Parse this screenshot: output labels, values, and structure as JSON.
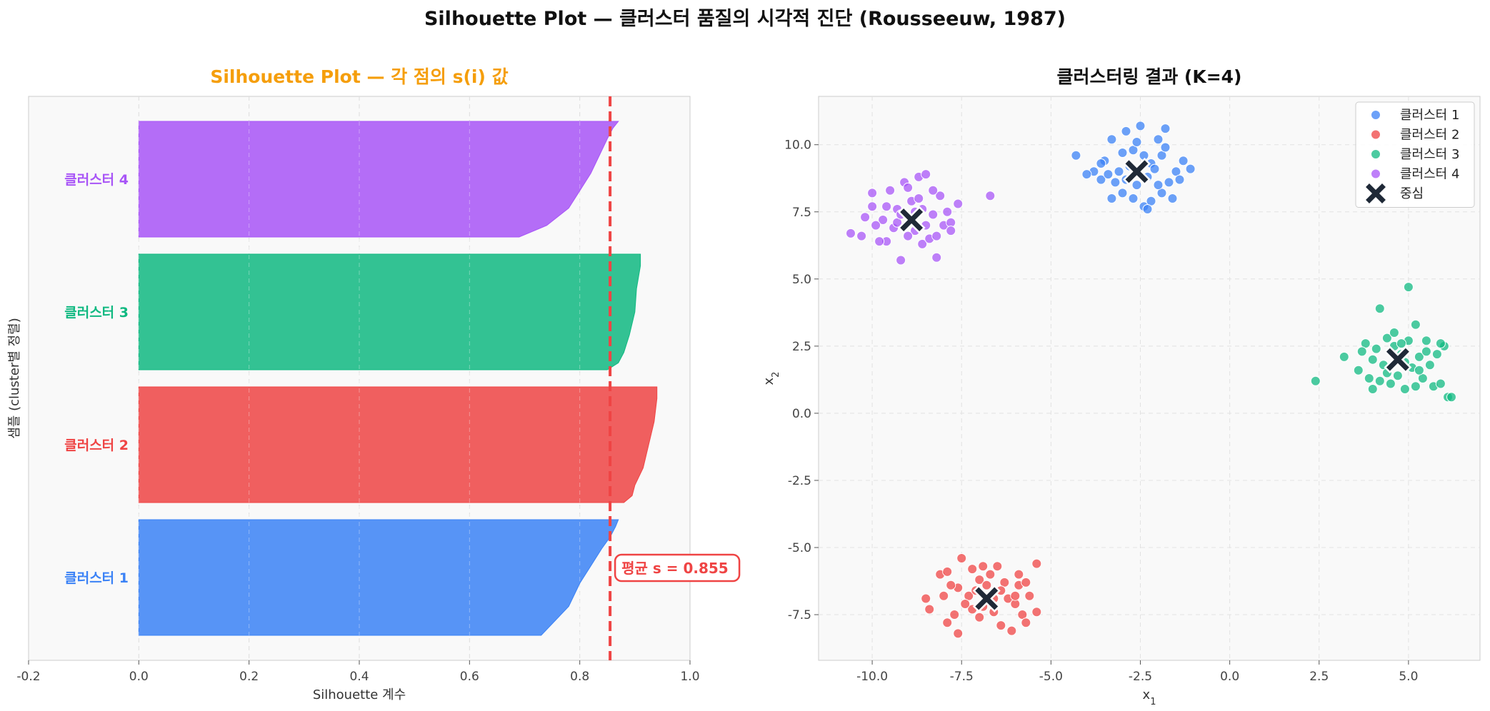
{
  "title": "Silhouette Plot — 클러스터 품질의 시각적 진단 (Rousseeuw, 1987)",
  "chart_data": [
    {
      "type": "area",
      "title": "Silhouette Plot — 각 점의 s(i) 값",
      "title_color": "#f59e0b",
      "xlabel": "Silhouette 계수",
      "ylabel": "샘플 (cluster별 정렬)",
      "xlim": [
        -0.2,
        1.0
      ],
      "xticks": [
        "-0.2",
        "0.0",
        "0.2",
        "0.4",
        "0.6",
        "0.8",
        "1.0"
      ],
      "grid": true,
      "mean_silhouette": 0.855,
      "mean_label": "평균 s = 0.855",
      "mean_color": "#ef4444",
      "clusters": [
        {
          "name": "클러스터 1",
          "color": "#3b82f6",
          "profile": [
            [
              0.0,
              0.73
            ],
            [
              0.25,
              0.78
            ],
            [
              0.45,
              0.8
            ],
            [
              0.6,
              0.82
            ],
            [
              0.75,
              0.84
            ],
            [
              0.85,
              0.855
            ],
            [
              0.94,
              0.865
            ],
            [
              1.0,
              0.87
            ]
          ]
        },
        {
          "name": "클러스터 2",
          "color": "#ef4444",
          "profile": [
            [
              0.0,
              0.88
            ],
            [
              0.06,
              0.895
            ],
            [
              0.15,
              0.9
            ],
            [
              0.3,
              0.915
            ],
            [
              0.5,
              0.925
            ],
            [
              0.7,
              0.935
            ],
            [
              0.9,
              0.94
            ],
            [
              1.0,
              0.94
            ]
          ]
        },
        {
          "name": "클러스터 3",
          "color": "#10b981",
          "profile": [
            [
              0.0,
              0.85
            ],
            [
              0.06,
              0.87
            ],
            [
              0.15,
              0.88
            ],
            [
              0.3,
              0.89
            ],
            [
              0.5,
              0.9
            ],
            [
              0.7,
              0.903
            ],
            [
              0.9,
              0.91
            ],
            [
              1.0,
              0.91
            ]
          ]
        },
        {
          "name": "클러스터 4",
          "color": "#a855f7",
          "profile": [
            [
              0.0,
              0.69
            ],
            [
              0.1,
              0.74
            ],
            [
              0.25,
              0.78
            ],
            [
              0.4,
              0.8
            ],
            [
              0.55,
              0.82
            ],
            [
              0.7,
              0.835
            ],
            [
              0.85,
              0.85
            ],
            [
              0.94,
              0.86
            ],
            [
              1.0,
              0.87
            ]
          ]
        }
      ]
    },
    {
      "type": "scatter",
      "title": "클러스터링 결과 (K=4)",
      "xlabel": "x1",
      "ylabel": "x2",
      "xlim": [
        -11.5,
        7.0
      ],
      "ylim": [
        -9.2,
        11.8
      ],
      "xticks": [
        "-10.0",
        "-7.5",
        "-5.0",
        "-2.5",
        "0.0",
        "2.5",
        "5.0"
      ],
      "yticks": [
        "-7.5",
        "-5.0",
        "-2.5",
        "0.0",
        "2.5",
        "5.0",
        "7.5",
        "10.0"
      ],
      "grid": true,
      "legend_placement": "top-right",
      "centroid_label": "중심",
      "centroid_color": "#1f2937",
      "series": [
        {
          "name": "클러스터 1",
          "color": "#3b82f6",
          "centroid": [
            -2.6,
            9.0
          ],
          "points": [
            [
              -4.3,
              9.6
            ],
            [
              -3.3,
              10.2
            ],
            [
              -2.9,
              10.5
            ],
            [
              -2.5,
              10.7
            ],
            [
              -1.8,
              10.6
            ],
            [
              -2.0,
              10.2
            ],
            [
              -2.7,
              9.8
            ],
            [
              -3.0,
              9.7
            ],
            [
              -3.5,
              9.4
            ],
            [
              -3.8,
              9.0
            ],
            [
              -3.6,
              8.7
            ],
            [
              -3.2,
              8.6
            ],
            [
              -3.0,
              8.2
            ],
            [
              -2.7,
              8.0
            ],
            [
              -2.4,
              7.7
            ],
            [
              -2.2,
              7.9
            ],
            [
              -1.9,
              8.2
            ],
            [
              -1.7,
              8.6
            ],
            [
              -1.5,
              9.0
            ],
            [
              -1.3,
              9.4
            ],
            [
              -1.1,
              9.1
            ],
            [
              -1.4,
              8.7
            ],
            [
              -1.6,
              8.0
            ],
            [
              -2.0,
              8.5
            ],
            [
              -2.3,
              8.8
            ],
            [
              -2.2,
              9.3
            ],
            [
              -1.9,
              9.6
            ],
            [
              -2.4,
              9.6
            ],
            [
              -2.8,
              9.2
            ],
            [
              -3.1,
              9.0
            ],
            [
              -3.4,
              8.9
            ],
            [
              -3.3,
              8.0
            ],
            [
              -2.6,
              8.5
            ],
            [
              -2.1,
              9.1
            ],
            [
              -1.8,
              9.9
            ],
            [
              -2.6,
              10.1
            ],
            [
              -3.6,
              9.3
            ],
            [
              -4.0,
              8.9
            ],
            [
              -2.9,
              8.7
            ],
            [
              -2.3,
              7.6
            ]
          ]
        },
        {
          "name": "클러스터 2",
          "color": "#ef4444",
          "centroid": [
            -6.8,
            -6.9
          ],
          "points": [
            [
              -8.5,
              -6.9
            ],
            [
              -8.4,
              -7.3
            ],
            [
              -8.1,
              -6.0
            ],
            [
              -7.9,
              -5.9
            ],
            [
              -7.6,
              -6.5
            ],
            [
              -7.5,
              -5.4
            ],
            [
              -7.3,
              -6.8
            ],
            [
              -7.2,
              -7.3
            ],
            [
              -7.0,
              -6.2
            ],
            [
              -6.9,
              -5.7
            ],
            [
              -6.7,
              -6.0
            ],
            [
              -6.5,
              -5.7
            ],
            [
              -6.3,
              -6.3
            ],
            [
              -6.2,
              -6.9
            ],
            [
              -6.0,
              -7.1
            ],
            [
              -5.9,
              -6.4
            ],
            [
              -5.8,
              -7.5
            ],
            [
              -5.6,
              -6.8
            ],
            [
              -5.4,
              -5.6
            ],
            [
              -5.4,
              -7.4
            ],
            [
              -6.1,
              -8.1
            ],
            [
              -7.6,
              -8.2
            ],
            [
              -7.9,
              -7.8
            ],
            [
              -8.0,
              -6.8
            ],
            [
              -7.7,
              -7.5
            ],
            [
              -7.0,
              -7.6
            ],
            [
              -6.6,
              -7.4
            ],
            [
              -6.4,
              -7.9
            ],
            [
              -5.7,
              -7.8
            ],
            [
              -6.8,
              -6.4
            ],
            [
              -7.1,
              -6.6
            ],
            [
              -6.4,
              -6.6
            ],
            [
              -5.9,
              -6.0
            ],
            [
              -7.4,
              -7.1
            ],
            [
              -6.0,
              -6.8
            ],
            [
              -7.8,
              -6.4
            ],
            [
              -6.6,
              -6.9
            ],
            [
              -7.2,
              -5.8
            ],
            [
              -5.7,
              -6.3
            ],
            [
              -6.9,
              -7.2
            ]
          ]
        },
        {
          "name": "클러스터 3",
          "color": "#10b981",
          "centroid": [
            4.7,
            2.0
          ],
          "points": [
            [
              2.4,
              1.2
            ],
            [
              3.2,
              2.1
            ],
            [
              3.6,
              1.6
            ],
            [
              3.8,
              2.6
            ],
            [
              3.9,
              1.3
            ],
            [
              4.0,
              0.9
            ],
            [
              4.1,
              2.4
            ],
            [
              4.2,
              3.9
            ],
            [
              4.3,
              1.8
            ],
            [
              4.4,
              2.8
            ],
            [
              4.5,
              1.1
            ],
            [
              4.6,
              2.5
            ],
            [
              4.7,
              1.4
            ],
            [
              4.8,
              2.2
            ],
            [
              4.9,
              0.9
            ],
            [
              5.0,
              4.7
            ],
            [
              5.0,
              2.7
            ],
            [
              5.1,
              1.7
            ],
            [
              5.2,
              3.3
            ],
            [
              5.3,
              2.1
            ],
            [
              5.4,
              1.3
            ],
            [
              5.5,
              2.7
            ],
            [
              5.6,
              1.8
            ],
            [
              5.7,
              1.0
            ],
            [
              5.8,
              2.2
            ],
            [
              5.9,
              1.1
            ],
            [
              6.0,
              2.5
            ],
            [
              6.1,
              0.6
            ],
            [
              6.2,
              0.6
            ],
            [
              4.0,
              2.0
            ],
            [
              4.4,
              1.5
            ],
            [
              4.6,
              3.0
            ],
            [
              5.3,
              1.6
            ],
            [
              3.7,
              2.3
            ],
            [
              4.8,
              2.6
            ],
            [
              5.5,
              2.3
            ],
            [
              4.2,
              1.2
            ],
            [
              5.9,
              2.6
            ],
            [
              4.9,
              1.9
            ],
            [
              5.2,
              1.0
            ]
          ]
        },
        {
          "name": "클러스터 4",
          "color": "#a855f7",
          "centroid": [
            -8.9,
            7.2
          ],
          "points": [
            [
              -10.6,
              6.7
            ],
            [
              -10.3,
              6.6
            ],
            [
              -10.2,
              7.3
            ],
            [
              -10.0,
              7.7
            ],
            [
              -10.0,
              8.2
            ],
            [
              -9.7,
              7.2
            ],
            [
              -9.6,
              6.4
            ],
            [
              -9.5,
              8.3
            ],
            [
              -9.4,
              6.9
            ],
            [
              -9.3,
              7.6
            ],
            [
              -9.2,
              5.7
            ],
            [
              -9.1,
              8.6
            ],
            [
              -9.0,
              8.4
            ],
            [
              -8.9,
              7.9
            ],
            [
              -8.8,
              6.8
            ],
            [
              -8.7,
              8.8
            ],
            [
              -8.6,
              6.3
            ],
            [
              -8.5,
              8.9
            ],
            [
              -8.4,
              6.5
            ],
            [
              -8.3,
              7.4
            ],
            [
              -8.2,
              5.8
            ],
            [
              -8.1,
              8.1
            ],
            [
              -8.0,
              7.0
            ],
            [
              -7.9,
              7.5
            ],
            [
              -7.8,
              7.1
            ],
            [
              -7.6,
              7.8
            ],
            [
              -6.7,
              8.1
            ],
            [
              -9.9,
              7.0
            ],
            [
              -9.3,
              7.1
            ],
            [
              -8.8,
              7.5
            ],
            [
              -8.5,
              7.0
            ],
            [
              -8.2,
              6.6
            ],
            [
              -9.0,
              6.6
            ],
            [
              -9.6,
              7.7
            ],
            [
              -8.6,
              7.6
            ],
            [
              -8.3,
              8.3
            ],
            [
              -7.8,
              6.8
            ],
            [
              -9.8,
              6.4
            ],
            [
              -8.7,
              8.0
            ],
            [
              -9.2,
              7.4
            ]
          ]
        }
      ]
    }
  ]
}
